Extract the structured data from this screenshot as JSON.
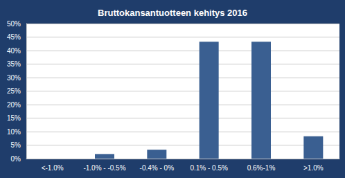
{
  "chart_data": {
    "type": "bar",
    "title": "Bruttokansantuotteen kehitys 2016",
    "categories": [
      "<-1.0%",
      "-1.0% - -0.5%",
      "-0.4% - 0%",
      "0.1% - 0.5%",
      "0.6%-1%",
      ">1.0%"
    ],
    "values": [
      0,
      1.7,
      3.3,
      43.3,
      43.3,
      8.3
    ],
    "color": "#3a5f91",
    "ylim": [
      0,
      50
    ],
    "yticks": [
      {
        "value": 0,
        "label": "0%"
      },
      {
        "value": 5,
        "label": "5%"
      },
      {
        "value": 10,
        "label": "10%"
      },
      {
        "value": 15,
        "label": "15%"
      },
      {
        "value": 20,
        "label": "20%"
      },
      {
        "value": 25,
        "label": "25%"
      },
      {
        "value": 30,
        "label": "30%"
      },
      {
        "value": 35,
        "label": "35%"
      },
      {
        "value": 40,
        "label": "40%"
      },
      {
        "value": 45,
        "label": "45%"
      },
      {
        "value": 50,
        "label": "50%"
      }
    ],
    "grid": true
  }
}
